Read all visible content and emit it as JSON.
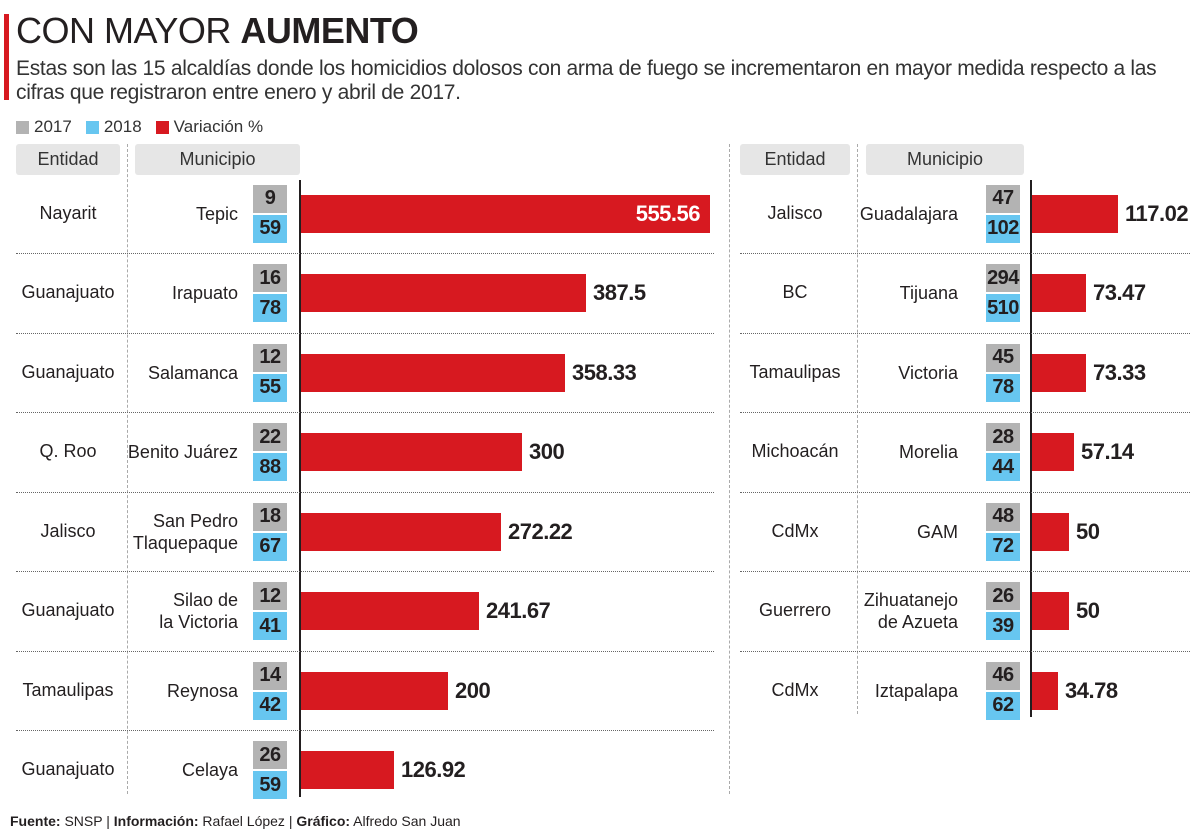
{
  "title": {
    "light": "CON MAYOR",
    "bold": "AUMENTO"
  },
  "subtitle": "Estas son las 15 alcaldías donde los homicidios dolosos con arma de fuego se incrementaron en mayor medida respecto a las cifras que registraron entre enero y abril de 2017.",
  "legend": [
    {
      "label": "2017",
      "color": "#b3b3b3"
    },
    {
      "label": "2018",
      "color": "#67c6f0"
    },
    {
      "label": "Variación %",
      "color": "#d71920"
    }
  ],
  "headers": {
    "entidad": "Entidad",
    "municipio": "Municipio"
  },
  "footer": {
    "fuente_label": "Fuente:",
    "fuente": "SNSP",
    "info_label": "Información:",
    "info": "Rafael López",
    "grafico_label": "Gráfico:",
    "grafico": "Alfredo San Juan"
  },
  "chart_data": {
    "type": "bar",
    "orientation": "horizontal",
    "title": "CON MAYOR AUMENTO",
    "series": [
      {
        "name": "2017",
        "color": "#b3b3b3"
      },
      {
        "name": "2018",
        "color": "#67c6f0"
      },
      {
        "name": "Variación %",
        "color": "#d71920"
      }
    ],
    "rows": [
      {
        "entidad": "Nayarit",
        "municipio": [
          "Tepic"
        ],
        "y2017": 9,
        "y2018": 59,
        "variacion": 555.56,
        "variacion_label": "555.56"
      },
      {
        "entidad": "Guanajuato",
        "municipio": [
          "Irapuato"
        ],
        "y2017": 16,
        "y2018": 78,
        "variacion": 387.5,
        "variacion_label": "387.5"
      },
      {
        "entidad": "Guanajuato",
        "municipio": [
          "Salamanca"
        ],
        "y2017": 12,
        "y2018": 55,
        "variacion": 358.33,
        "variacion_label": "358.33"
      },
      {
        "entidad": "Q. Roo",
        "municipio": [
          "Benito Juárez"
        ],
        "y2017": 22,
        "y2018": 88,
        "variacion": 300,
        "variacion_label": "300"
      },
      {
        "entidad": "Jalisco",
        "municipio": [
          "San Pedro",
          "Tlaquepaque"
        ],
        "y2017": 18,
        "y2018": 67,
        "variacion": 272.22,
        "variacion_label": "272.22"
      },
      {
        "entidad": "Guanajuato",
        "municipio": [
          "Silao de",
          "la Victoria"
        ],
        "y2017": 12,
        "y2018": 41,
        "variacion": 241.67,
        "variacion_label": "241.67"
      },
      {
        "entidad": "Tamaulipas",
        "municipio": [
          "Reynosa"
        ],
        "y2017": 14,
        "y2018": 42,
        "variacion": 200,
        "variacion_label": "200"
      },
      {
        "entidad": "Guanajuato",
        "municipio": [
          "Celaya"
        ],
        "y2017": 26,
        "y2018": 59,
        "variacion": 126.92,
        "variacion_label": "126.92"
      },
      {
        "entidad": "Jalisco",
        "municipio": [
          "Guadalajara"
        ],
        "y2017": 47,
        "y2018": 102,
        "variacion": 117.02,
        "variacion_label": "117.02"
      },
      {
        "entidad": "BC",
        "municipio": [
          "Tijuana"
        ],
        "y2017": 294,
        "y2018": 510,
        "variacion": 73.47,
        "variacion_label": "73.47"
      },
      {
        "entidad": "Tamaulipas",
        "municipio": [
          "Victoria"
        ],
        "y2017": 45,
        "y2018": 78,
        "variacion": 73.33,
        "variacion_label": "73.33"
      },
      {
        "entidad": "Michoacán",
        "municipio": [
          "Morelia"
        ],
        "y2017": 28,
        "y2018": 44,
        "variacion": 57.14,
        "variacion_label": "57.14"
      },
      {
        "entidad": "CdMx",
        "municipio": [
          "GAM"
        ],
        "y2017": 48,
        "y2018": 72,
        "variacion": 50,
        "variacion_label": "50"
      },
      {
        "entidad": "Guerrero",
        "municipio": [
          "Zihuatanejo",
          "de Azueta"
        ],
        "y2017": 26,
        "y2018": 39,
        "variacion": 50,
        "variacion_label": "50"
      },
      {
        "entidad": "CdMx",
        "municipio": [
          "Iztapalapa"
        ],
        "y2017": 46,
        "y2018": 62,
        "variacion": 34.78,
        "variacion_label": "34.78"
      }
    ]
  }
}
